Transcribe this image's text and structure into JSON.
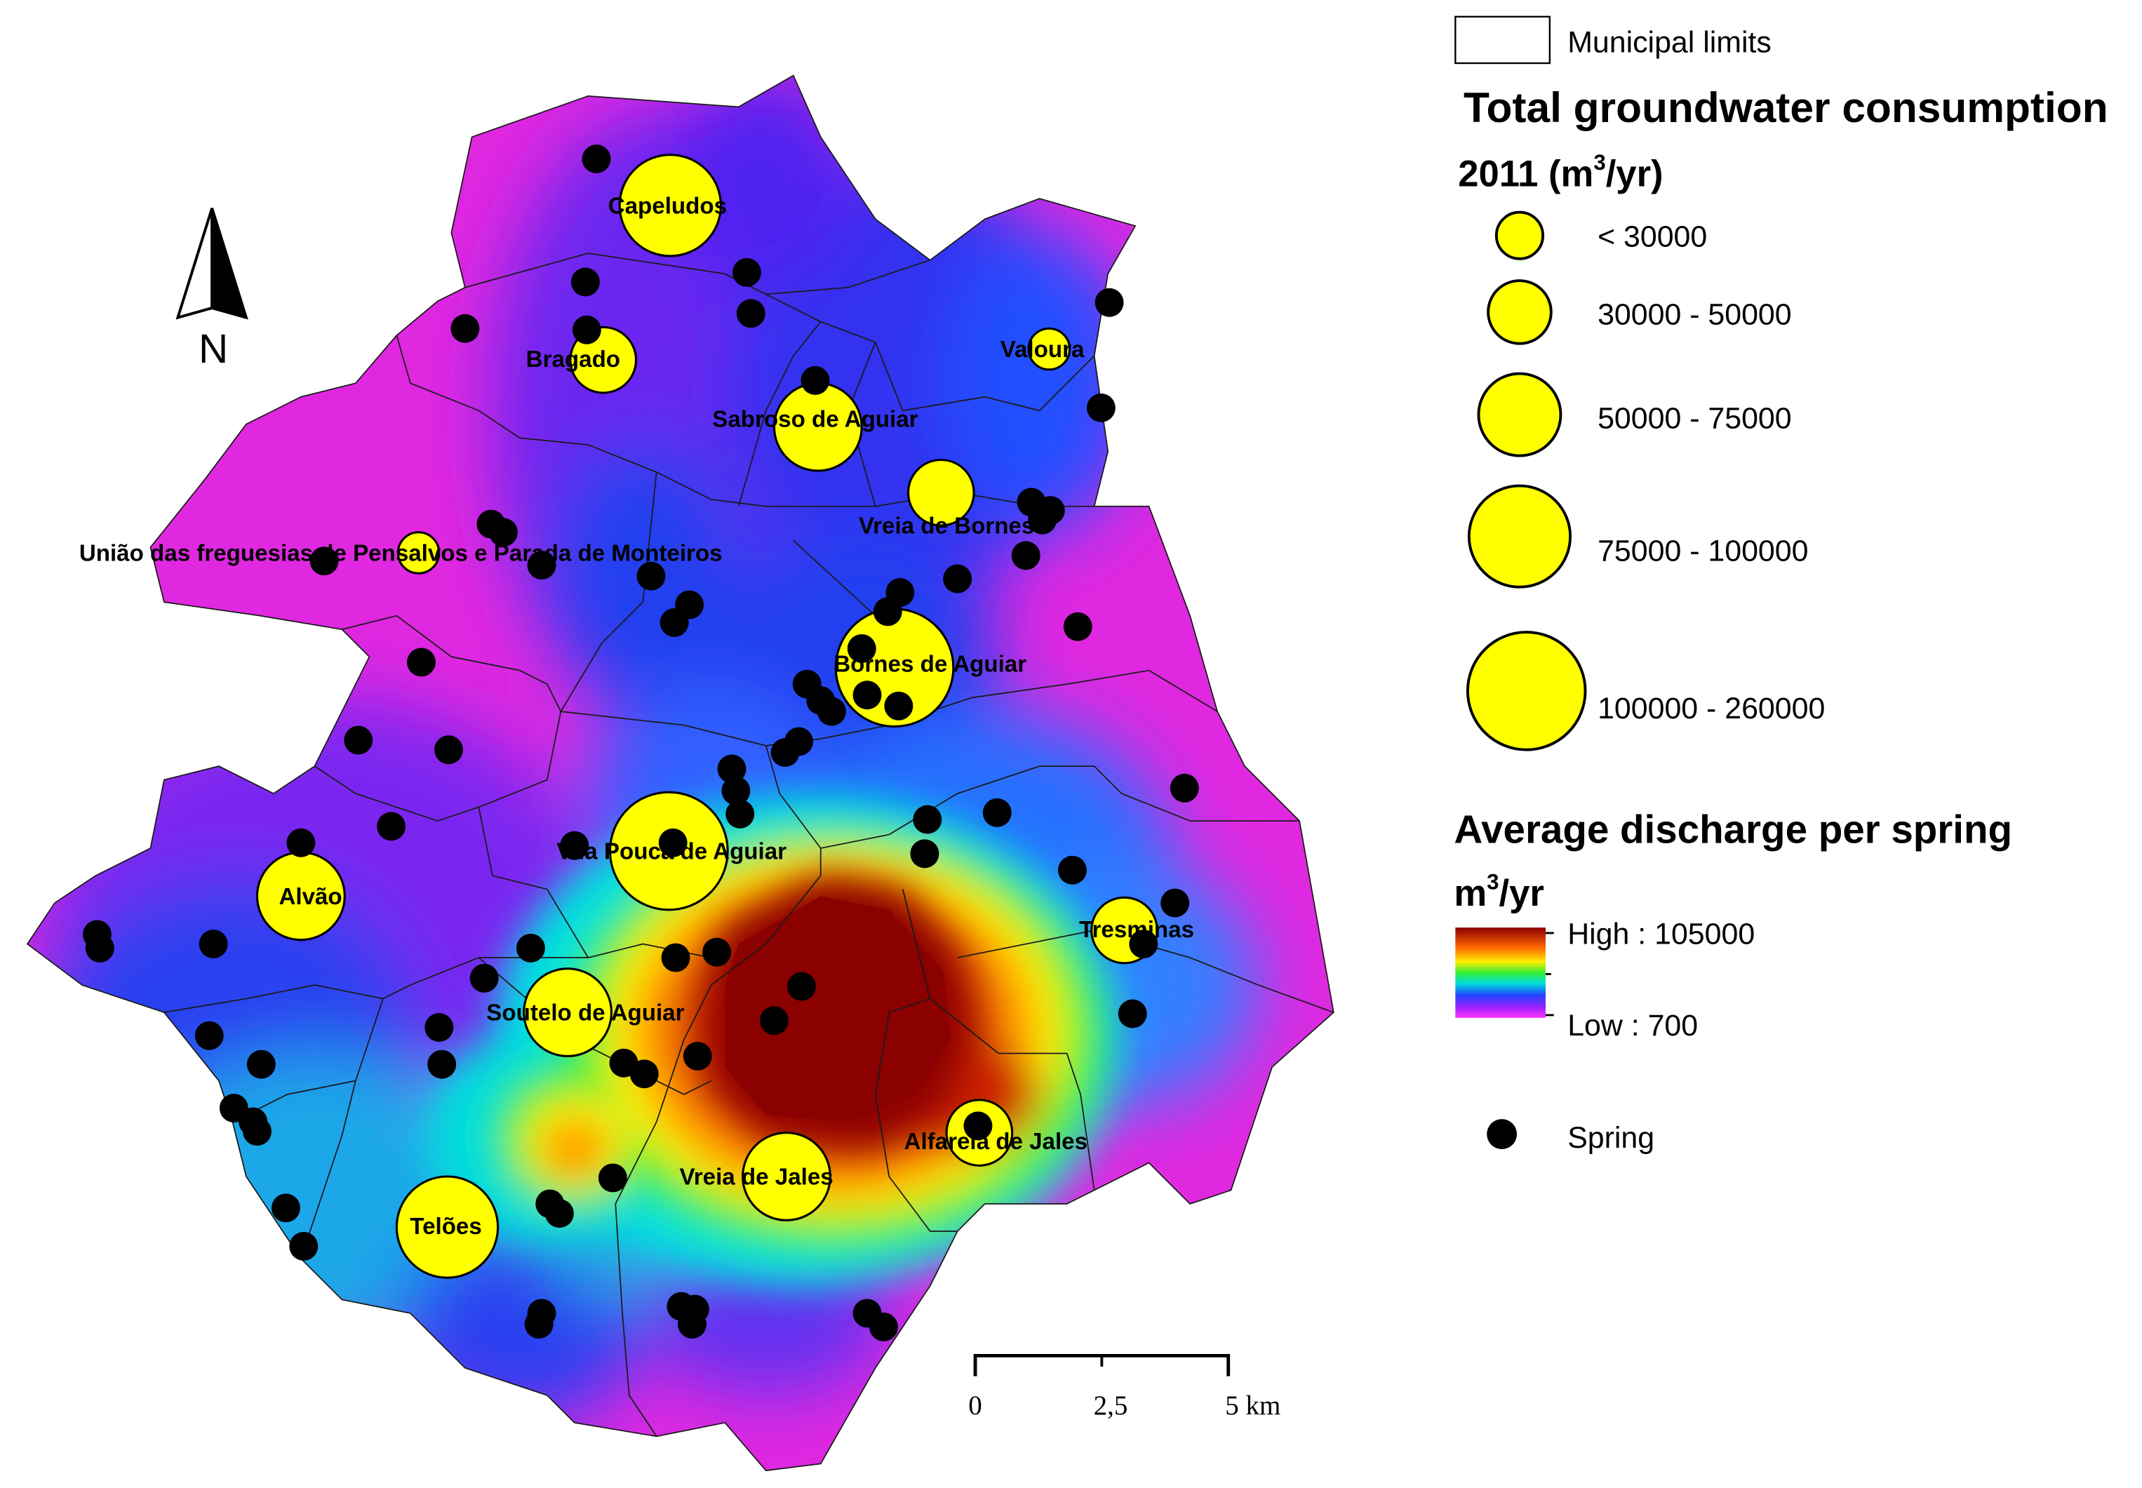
{
  "legend": {
    "municipal_limits": "Municipal limits",
    "consumption_title_line1": "Total groundwater consumption",
    "consumption_title_line2_prefix": "2011 (m",
    "consumption_title_line2_sup": "3",
    "consumption_title_line2_suffix": "/yr)",
    "consumption_classes": [
      {
        "label": "< 30000",
        "min": 0,
        "max": 30000
      },
      {
        "label": "30000 - 50000",
        "min": 30000,
        "max": 50000
      },
      {
        "label": "50000 - 75000",
        "min": 50000,
        "max": 75000
      },
      {
        "label": "75000 - 100000",
        "min": 75000,
        "max": 100000
      },
      {
        "label": "100000 - 260000",
        "min": 100000,
        "max": 260000
      }
    ],
    "discharge_title_line1": "Average discharge per spring",
    "discharge_unit_prefix": "m",
    "discharge_unit_sup": "3",
    "discharge_unit_suffix": "/yr",
    "discharge_high": "High : 105000",
    "discharge_low": "Low : 700",
    "spring": "Spring"
  },
  "scalebar": {
    "labels": [
      "0",
      "2,5",
      "5 km"
    ]
  },
  "north_arrow": {
    "label": "N",
    "icon": "north-arrow-icon"
  },
  "colors": {
    "consumption_fill": "#ffff00",
    "spring": "#000000",
    "ramp_high": "#8b0000",
    "ramp_low": "#ff33ff",
    "map_background_magenta": "#e028e0"
  },
  "parishes": [
    {
      "name": "Capeludos",
      "class": 4
    },
    {
      "name": "Bragado",
      "class": 2
    },
    {
      "name": "Valoura",
      "class": 1
    },
    {
      "name": "Sabroso de Aguiar",
      "class": 3
    },
    {
      "name": "Vreia de Bornes",
      "class": 2
    },
    {
      "name": "União das freguesias de Pensalvos e Parada de Monteiros",
      "class": 1
    },
    {
      "name": "Bornes de Aguiar",
      "class": 5
    },
    {
      "name": "Alvão",
      "class": 3
    },
    {
      "name": "Vila Pouca de Aguiar",
      "class": 5
    },
    {
      "name": "Tresminas",
      "class": 2
    },
    {
      "name": "Soutelo de Aguiar",
      "class": 3
    },
    {
      "name": "Alfarela de Jales",
      "class": 2
    },
    {
      "name": "Vreia de Jales",
      "class": 3
    },
    {
      "name": "Telões",
      "class": 4
    }
  ]
}
